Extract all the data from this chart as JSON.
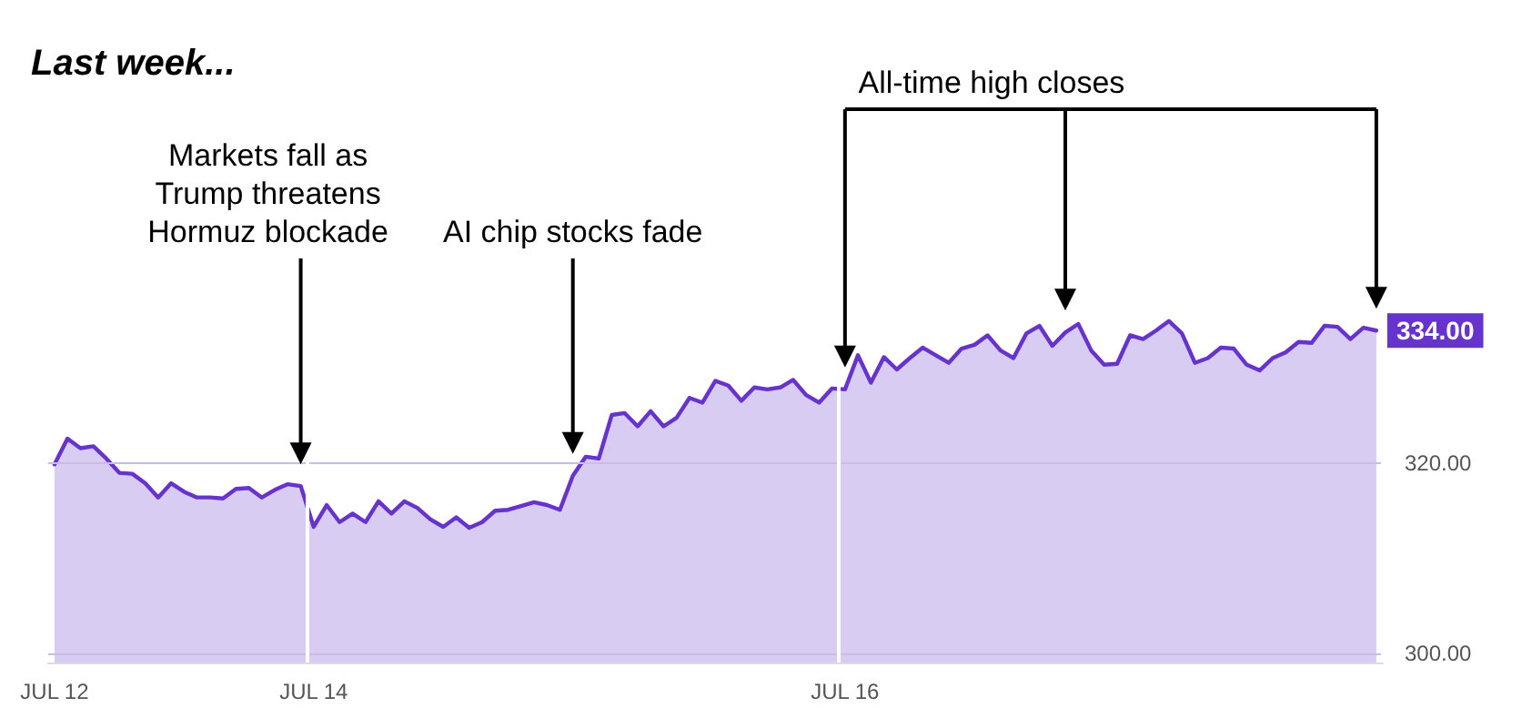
{
  "chart_data": {
    "type": "area",
    "title": "Last week...",
    "categories": [
      "JUL 12",
      null,
      null,
      null,
      null,
      null,
      null,
      null,
      null,
      null,
      null,
      null,
      null,
      null,
      null,
      null,
      null,
      null,
      null,
      null,
      "JUL 14",
      null,
      null,
      null,
      null,
      null,
      null,
      null,
      null,
      null,
      null,
      null,
      null,
      null,
      null,
      null,
      null,
      null,
      null,
      null,
      null,
      null,
      null,
      null,
      null,
      null,
      null,
      null,
      null,
      null,
      null,
      null,
      null,
      null,
      null,
      null,
      null,
      null,
      null,
      null,
      null,
      "JUL 16",
      null,
      null,
      null,
      null,
      null,
      null,
      null,
      null,
      null,
      null,
      null,
      null,
      null,
      null,
      null,
      null,
      null,
      null,
      null,
      null,
      null,
      null,
      null,
      null,
      null,
      null,
      null,
      null,
      null,
      null,
      null,
      null,
      null,
      null,
      null,
      null,
      null,
      null,
      null,
      null,
      null
    ],
    "series": [
      {
        "color": "#6633cc",
        "values": [
          319.9,
          322.6,
          321.6,
          321.8,
          320.5,
          319.0,
          318.9,
          317.9,
          316.4,
          317.9,
          317.0,
          316.4,
          316.4,
          316.3,
          317.3,
          317.4,
          316.4,
          317.2,
          317.8,
          317.6,
          313.3,
          315.6,
          313.8,
          314.7,
          313.8,
          316.0,
          314.7,
          316.0,
          315.3,
          314.1,
          313.3,
          314.3,
          313.2,
          313.8,
          315.0,
          315.1,
          315.5,
          315.9,
          315.6,
          315.1,
          318.7,
          320.7,
          320.5,
          325.1,
          325.3,
          323.9,
          325.5,
          323.9,
          324.8,
          326.9,
          326.4,
          328.7,
          328.2,
          326.6,
          328.0,
          327.8,
          328.0,
          328.8,
          327.2,
          326.4,
          327.9,
          327.8,
          331.4,
          328.5,
          331.2,
          329.9,
          331.1,
          332.2,
          331.4,
          330.6,
          332.1,
          332.5,
          333.5,
          331.9,
          331.1,
          333.7,
          334.5,
          332.4,
          333.8,
          334.7,
          331.9,
          330.4,
          330.5,
          333.5,
          333.1,
          334.0,
          335.0,
          333.7,
          330.6,
          331.1,
          332.2,
          332.1,
          330.4,
          329.8,
          331.1,
          331.7,
          332.8,
          332.7,
          334.5,
          334.4,
          333.1,
          334.3,
          334
        ],
        "value_labels": [
          null,
          null,
          null,
          null,
          null,
          null,
          null,
          null,
          null,
          null,
          null,
          null,
          null,
          null,
          null,
          null,
          null,
          null,
          null,
          null,
          null,
          null,
          null,
          null,
          null,
          null,
          null,
          null,
          null,
          null,
          null,
          null,
          null,
          null,
          null,
          null,
          null,
          null,
          null,
          null,
          null,
          null,
          null,
          null,
          null,
          null,
          null,
          null,
          null,
          null,
          null,
          null,
          null,
          null,
          null,
          null,
          null,
          null,
          null,
          null,
          null,
          null,
          null,
          null,
          null,
          null,
          null,
          null,
          null,
          null,
          null,
          null,
          null,
          null,
          null,
          null,
          null,
          null,
          null,
          null,
          null,
          null,
          null,
          null,
          null,
          null,
          null,
          null,
          null,
          null,
          null,
          null,
          null,
          null,
          null,
          null,
          null,
          null,
          null,
          null,
          null,
          null,
          "334.00"
        ]
      }
    ],
    "ylim": [
      299,
      337
    ],
    "yticks": [
      {
        "value": 300,
        "label": "300.00"
      },
      {
        "value": 320,
        "label": "320.00"
      }
    ],
    "grid": true,
    "marker": "none",
    "line_style": "solid",
    "annotations": [
      "Markets fall as\nTrump threatens\nHormuz blockade",
      "AI chip stocks fade",
      "All-time high closes"
    ]
  }
}
